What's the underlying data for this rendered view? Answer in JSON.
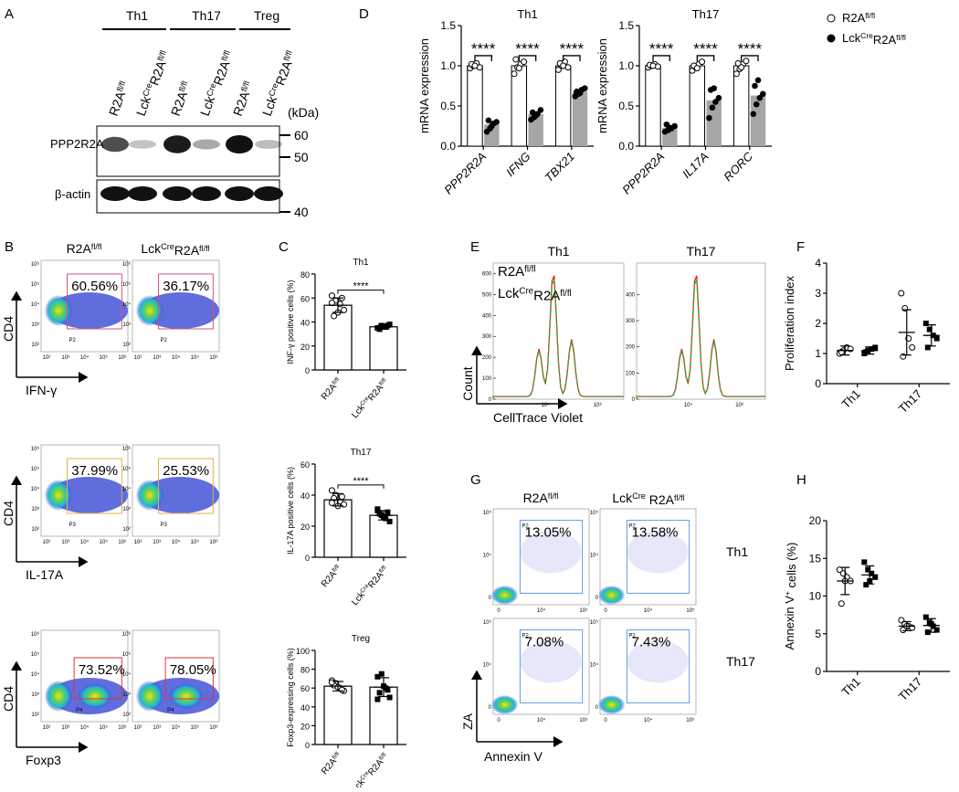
{
  "figure_labels": [
    "A",
    "B",
    "C",
    "D",
    "E",
    "F",
    "G",
    "H"
  ],
  "genotypes": {
    "wt": [
      "R2A",
      "fl/fl"
    ],
    "ko": [
      "Lck",
      "Cre",
      "R2A",
      "fl/fl"
    ],
    "ko_spaced": [
      "Lck",
      "Cre",
      " R2A",
      "fl/fl"
    ]
  },
  "A": {
    "groups": [
      "Th1",
      "Th17",
      "Treg"
    ],
    "kda": "(kDa)",
    "markers": [
      60,
      50,
      40
    ],
    "proteins": [
      "PPP2R2A",
      "β-actin"
    ]
  },
  "B": {
    "y_label": "CD4",
    "ticks": [
      "10²",
      "10³",
      "10⁴",
      "10⁵",
      "10⁶"
    ],
    "rows": [
      {
        "x_label": "IFN-γ",
        "gate": "P2",
        "color": "#d9546e",
        "percents": [
          "60.56%",
          "36.17%"
        ]
      },
      {
        "x_label": "IL-17A",
        "gate": "P3",
        "color": "#e0b347",
        "percents": [
          "37.99%",
          "25.53%"
        ]
      },
      {
        "x_label": "Foxp3",
        "gate": "P4",
        "color": "#e2333d",
        "percents": [
          "73.52%",
          "78.05%"
        ]
      }
    ]
  },
  "E": {
    "titles": [
      "Th1",
      "Th17"
    ],
    "y_label": "Count",
    "x_label": "CellTrace Violet",
    "xticks": [
      "10⁴",
      "10⁶"
    ],
    "ylims": [
      [
        0,
        650
      ],
      [
        0,
        520
      ]
    ],
    "yticks": [
      [
        0,
        100,
        200,
        300,
        400,
        500,
        600
      ],
      [
        0,
        100,
        200,
        300,
        400
      ]
    ],
    "legend": [
      {
        "color": "#e8231d"
      },
      {
        "color": "#27b43c"
      }
    ]
  },
  "G": {
    "y_label": "ZA",
    "x_label": "Annexin V",
    "gate": "P2",
    "ticks": [
      "0",
      "10⁴",
      "10⁵"
    ],
    "rows": [
      {
        "name": "Th1",
        "percents": [
          "13.05%",
          "13.58%"
        ]
      },
      {
        "name": "Th17",
        "percents": [
          "7.08%",
          "7.43%"
        ]
      }
    ]
  },
  "legend": [
    {
      "marker": "open-circle"
    },
    {
      "marker": "dot"
    }
  ],
  "chart_data": [
    {
      "type": "bar",
      "title": "Th1",
      "y_label": "INF-γ positive cells (%)",
      "categories": [
        [
          "R2A",
          "fl/fl"
        ],
        [
          "Lck",
          "Cre",
          "R2A",
          "fl/fl"
        ]
      ],
      "values": [
        54,
        36
      ],
      "errors": [
        6,
        2
      ],
      "markers": [
        "open-circle",
        "square"
      ],
      "points": [
        [
          62,
          58,
          55,
          50,
          45,
          48,
          60,
          56
        ],
        [
          35,
          37,
          36,
          38,
          34,
          36,
          37,
          35
        ]
      ],
      "ylim": [
        0,
        80
      ],
      "yticks": [
        0,
        20,
        40,
        60,
        80
      ],
      "significance": "****"
    },
    {
      "type": "bar",
      "title": "Th17",
      "y_label": "IL-17A positive cells (%)",
      "categories": [
        [
          "R2A",
          "fl/fl"
        ],
        [
          "Lck",
          "Cre",
          "R2A",
          "fl/fl"
        ]
      ],
      "values": [
        37,
        27
      ],
      "errors": [
        4,
        3
      ],
      "markers": [
        "open-circle",
        "square"
      ],
      "points": [
        [
          43,
          40,
          36,
          34,
          38,
          33,
          39,
          35
        ],
        [
          30,
          27,
          25,
          23,
          28,
          26,
          29,
          31
        ]
      ],
      "ylim": [
        0,
        60
      ],
      "yticks": [
        0,
        20,
        40,
        60
      ],
      "significance": "****"
    },
    {
      "type": "bar",
      "title": "Treg",
      "y_label": "Foxp3-expressing cells (%)",
      "categories": [
        [
          "R2A",
          "fl/fl"
        ],
        [
          "Lck",
          "Cre",
          "R2A",
          "fl/fl"
        ]
      ],
      "values": [
        62,
        61
      ],
      "errors": [
        5,
        10
      ],
      "markers": [
        "open-circle",
        "square"
      ],
      "points": [
        [
          68,
          65,
          60,
          57,
          63,
          61,
          58,
          66
        ],
        [
          72,
          75,
          60,
          50,
          55,
          62,
          58,
          48
        ]
      ],
      "ylim": [
        0,
        100
      ],
      "yticks": [
        0,
        20,
        40,
        60,
        80,
        100
      ]
    },
    {
      "type": "grouped_bar",
      "title": "Th1",
      "y_label": "mRNA expression",
      "category_style": "italic",
      "categories": [
        "PPP2R2A",
        "IFNG",
        "TBX21"
      ],
      "ylim": [
        0,
        1.5
      ],
      "yticks": [
        {
          "value": 0,
          "label": "0.0"
        },
        0.5,
        {
          "value": 1,
          "label": "1.0"
        },
        1.5
      ],
      "significance": [
        "****",
        "****",
        "****"
      ],
      "series": [
        {
          "color": "#ffffff",
          "marker": "open-circle",
          "values": [
            1,
            1,
            1
          ],
          "points": [
            [
              0.97,
              1,
              1.03,
              0.98,
              1.02,
              1
            ],
            [
              0.9,
              0.98,
              1.02,
              1.05,
              1.08,
              0.97
            ],
            [
              0.95,
              1,
              1.05,
              0.98,
              1.03,
              1
            ]
          ]
        },
        {
          "color": "#a6a6a6",
          "marker": "dot",
          "values": [
            0.27,
            0.4,
            0.68
          ],
          "points": [
            [
              0.18,
              0.22,
              0.28,
              0.3,
              0.32,
              0.25
            ],
            [
              0.33,
              0.36,
              0.4,
              0.45,
              0.42,
              0.38
            ],
            [
              0.62,
              0.65,
              0.7,
              0.72,
              0.68,
              0.66
            ]
          ]
        }
      ]
    },
    {
      "type": "grouped_bar",
      "title": "Th17",
      "y_label": "mRNA expression",
      "category_style": "italic",
      "categories": [
        "PPP2R2A",
        "IL17A",
        "RORC"
      ],
      "ylim": [
        0,
        1.5
      ],
      "yticks": [
        {
          "value": 0,
          "label": "0.0"
        },
        0.5,
        {
          "value": 1,
          "label": "1.0"
        },
        1.5
      ],
      "significance": [
        "****",
        "****",
        "****"
      ],
      "series": [
        {
          "color": "#ffffff",
          "marker": "open-circle",
          "values": [
            1,
            1,
            1
          ],
          "points": [
            [
              0.98,
              1,
              1.02,
              0.99,
              1.01,
              1
            ],
            [
              0.94,
              0.98,
              1.02,
              1.05,
              1,
              0.97
            ],
            [
              0.9,
              0.96,
              1.02,
              1.06,
              1.03,
              0.98
            ]
          ]
        },
        {
          "color": "#a6a6a6",
          "marker": "dot",
          "values": [
            0.23,
            0.57,
            0.63
          ],
          "points": [
            [
              0.18,
              0.2,
              0.22,
              0.25,
              0.27,
              0.23
            ],
            [
              0.35,
              0.48,
              0.55,
              0.6,
              0.7,
              0.72
            ],
            [
              0.4,
              0.52,
              0.6,
              0.65,
              0.75,
              0.82
            ]
          ]
        }
      ]
    },
    {
      "type": "dot_plot",
      "y_label": "Proliferation index",
      "categories": [
        "Th1",
        "Th17"
      ],
      "ylim": [
        0,
        4
      ],
      "yticks": [
        0,
        1,
        2,
        3,
        4
      ],
      "series": [
        {
          "marker": "open-circle",
          "values": [
            1.1,
            1.7
          ],
          "errors": [
            0.15,
            0.75
          ],
          "points": [
            [
              1,
              1.1,
              1.2,
              1.15,
              1.05
            ],
            [
              3,
              2.5,
              1.5,
              1.2,
              0.9
            ]
          ]
        },
        {
          "marker": "square",
          "values": [
            1.1,
            1.6
          ],
          "errors": [
            0.12,
            0.35
          ],
          "points": [
            [
              1,
              1.1,
              1.15,
              1.2,
              1.05
            ],
            [
              2,
              1.8,
              1.6,
              1.5,
              1.2
            ]
          ]
        }
      ]
    },
    {
      "type": "dot_plot",
      "y_label": [
        "Annexin V",
        "+",
        " cells (%)"
      ],
      "categories": [
        "Th1",
        "Th17"
      ],
      "ylim": [
        0,
        20
      ],
      "yticks": [
        0,
        5,
        10,
        15,
        20
      ],
      "series": [
        {
          "marker": "open-circle",
          "values": [
            12,
            6
          ],
          "errors": [
            1.8,
            0.6
          ],
          "points": [
            [
              13.5,
              13,
              12.5,
              12,
              9,
              12
            ],
            [
              6.8,
              6.3,
              6,
              5.8,
              5.5,
              6
            ]
          ]
        },
        {
          "marker": "square",
          "values": [
            12.8,
            6.1
          ],
          "errors": [
            1.2,
            0.9
          ],
          "points": [
            [
              14.5,
              13.5,
              13,
              12.5,
              11.5,
              12
            ],
            [
              7.2,
              6.5,
              6,
              5.5,
              5.2,
              6.3
            ]
          ]
        }
      ]
    }
  ]
}
